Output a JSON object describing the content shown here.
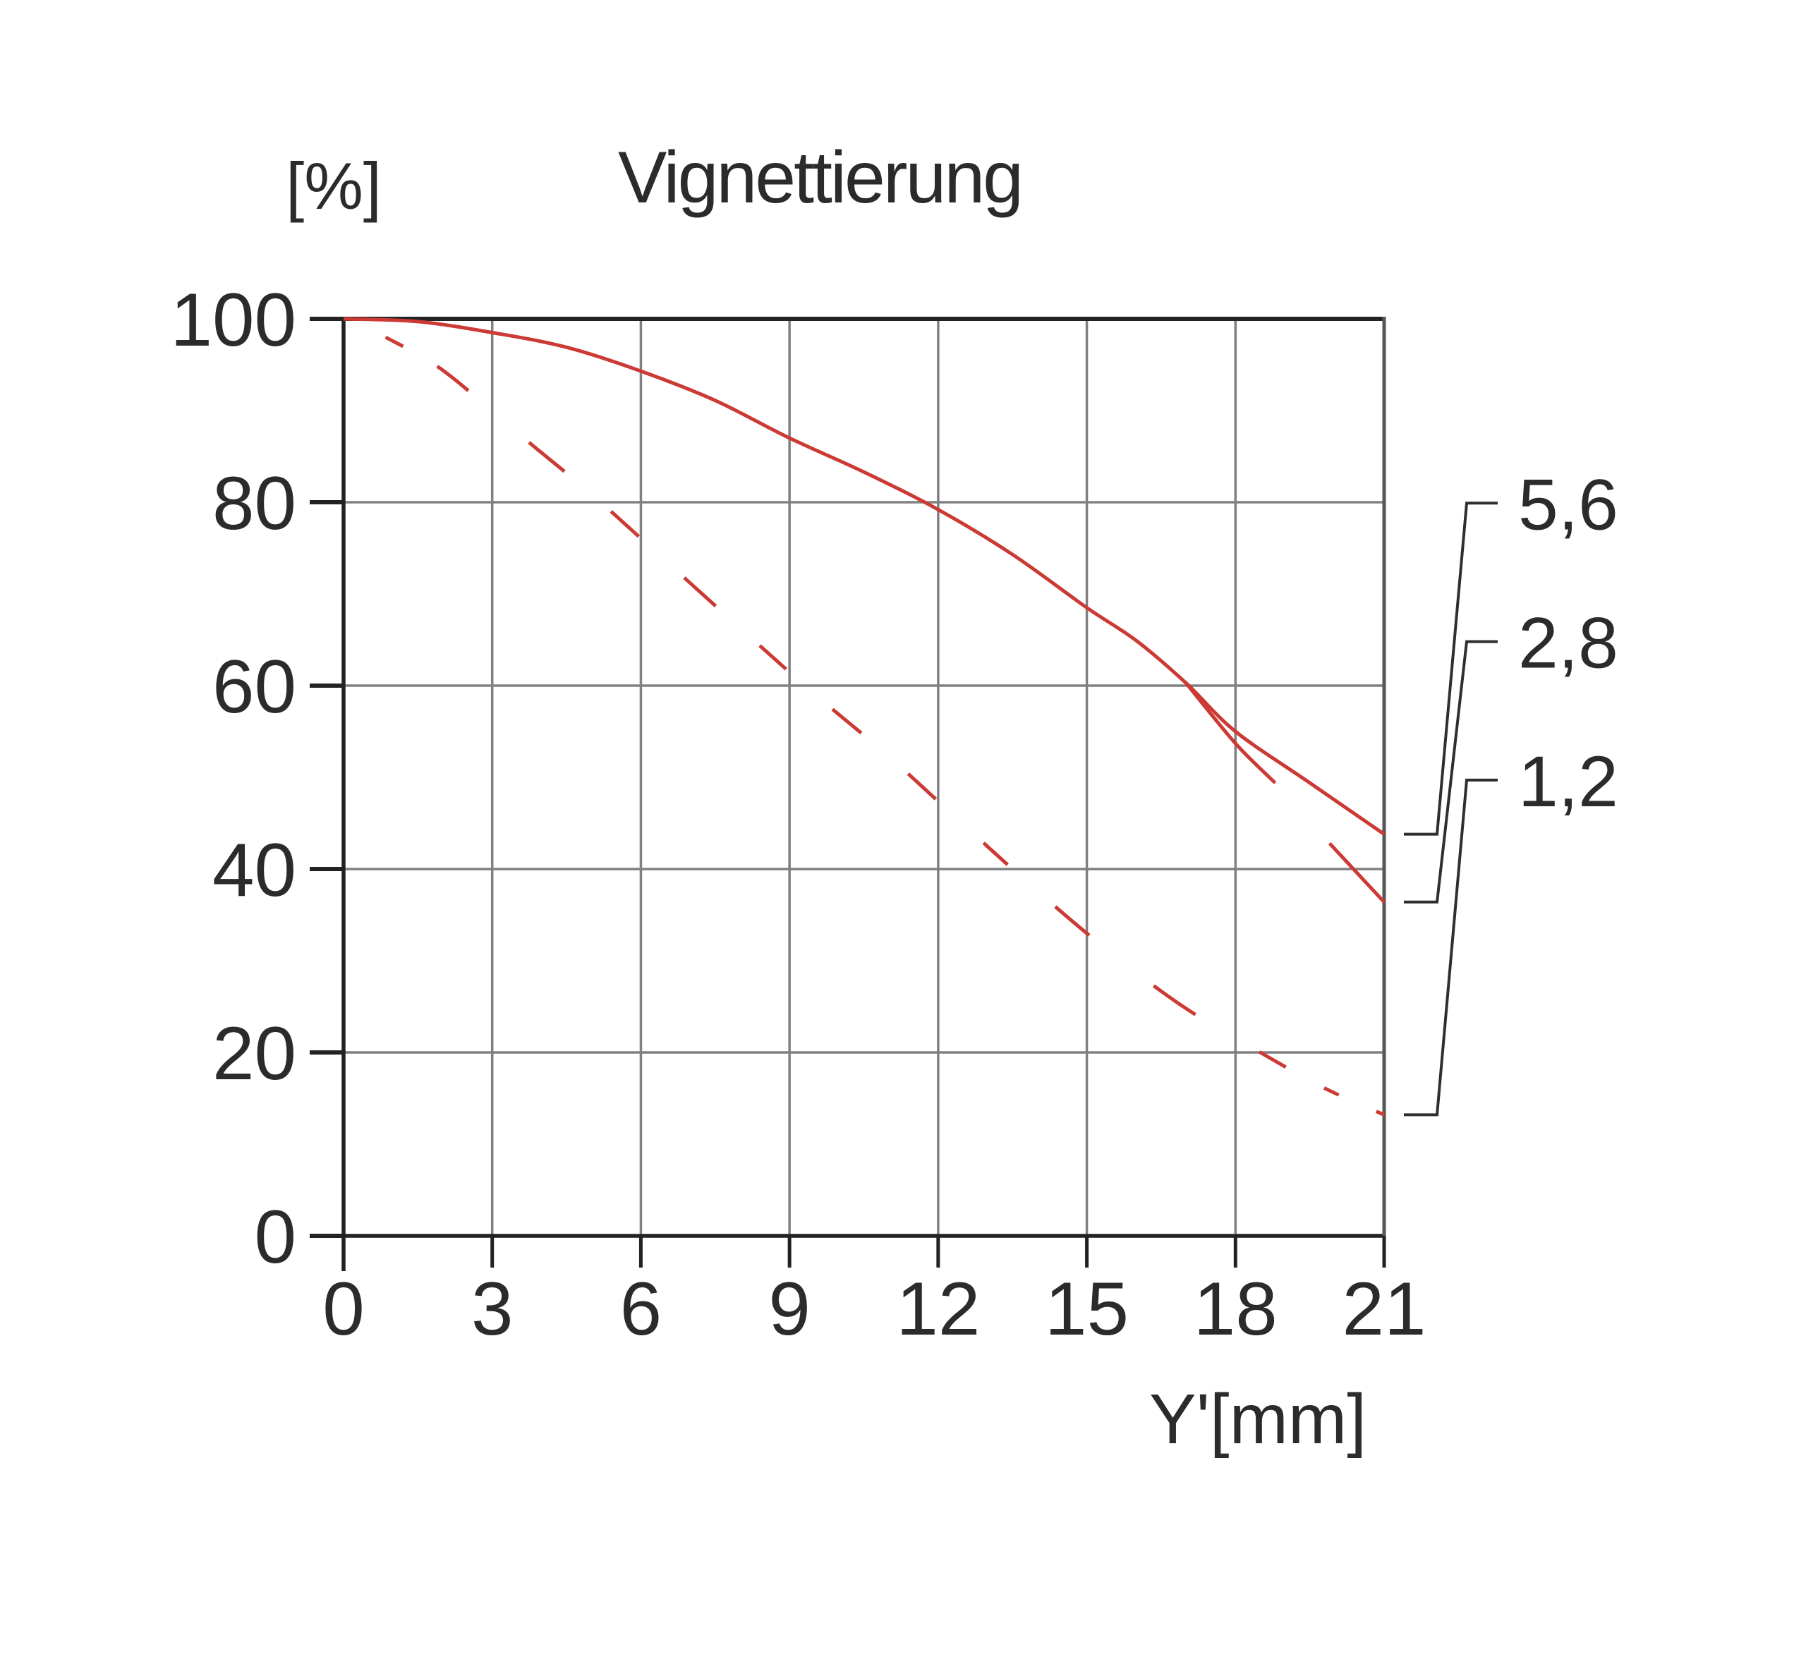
{
  "chart_data": {
    "type": "line",
    "title": "Vignettierung",
    "y_unit_label": "[%]",
    "x_axis_label": "Y'[mm]",
    "x_ticks": [
      0,
      3,
      6,
      9,
      12,
      15,
      18,
      21
    ],
    "y_ticks": [
      100,
      80,
      60,
      40,
      20,
      0
    ],
    "xlim": [
      0,
      21
    ],
    "ylim": [
      0,
      100
    ],
    "grid": true,
    "colors": {
      "curve": "#cb3a34",
      "axis": "#222222",
      "grid": "#808080",
      "right_border": "#565656",
      "leader": "#2f2f2f",
      "text": "#2b2b2b"
    },
    "series": [
      {
        "label": "5,6",
        "style": "solid",
        "label_at_percent": 79.9,
        "end_percent": 43.8,
        "segments": [
          [
            [
              0,
              100
            ],
            [
              1.5,
              99.7
            ],
            [
              3,
              98.5
            ],
            [
              4.5,
              96.9
            ],
            [
              6,
              94.3
            ],
            [
              7.5,
              91.1
            ],
            [
              9,
              87.0
            ],
            [
              10.5,
              83.3
            ],
            [
              12,
              79.2
            ],
            [
              13.5,
              74.3
            ],
            [
              15,
              68.5
            ],
            [
              16,
              64.9
            ],
            [
              17,
              60.3
            ],
            [
              18,
              55.0
            ],
            [
              19.5,
              49.4
            ],
            [
              21,
              43.8
            ]
          ]
        ]
      },
      {
        "label": "2,8",
        "style": "solid",
        "label_at_percent": 64.8,
        "end_percent": 36.4,
        "segments": [
          [
            [
              17,
              60.3
            ],
            [
              18,
              53.7
            ],
            [
              18.8,
              49.4
            ]
          ],
          [
            [
              19.9,
              42.8
            ],
            [
              21,
              36.4
            ]
          ]
        ]
      },
      {
        "label": "1,2",
        "style": "dashed",
        "dash_pattern": "28 56 56 113 65 87 53 87 60 84 50 87 53 88 53 92 46 90 63 116 72 105 43 62 23 58 14 2000",
        "label_at_percent": 49.7,
        "end_percent": 13.2,
        "segments": [
          [
            [
              0.85,
              98.0
            ],
            [
              2,
              94.4
            ],
            [
              3.5,
              87.6
            ],
            [
              5,
              80.9
            ],
            [
              6.5,
              73.6
            ],
            [
              8,
              66.3
            ],
            [
              9.5,
              59.1
            ],
            [
              11,
              52.3
            ],
            [
              12.5,
              44.9
            ],
            [
              14,
              37.6
            ],
            [
              15.5,
              30.8
            ],
            [
              17,
              24.8
            ],
            [
              18.5,
              20.0
            ],
            [
              19.8,
              16.1
            ],
            [
              21,
              13.2
            ]
          ]
        ]
      }
    ]
  }
}
